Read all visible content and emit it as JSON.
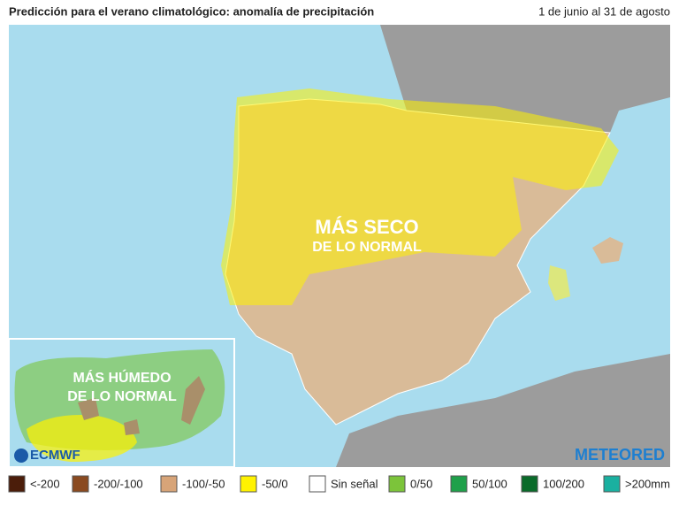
{
  "header": {
    "title": "Predicción para el verano climatológico: anomalía de precipitación",
    "date_range": "1 de junio al 31 de agosto"
  },
  "map": {
    "labels": [
      {
        "lines": [
          "MÁS SECO",
          "DE LO NORMAL"
        ]
      },
      {
        "lines": [
          "MÁS HÚMEDO",
          "DE LO NORMAL"
        ]
      }
    ],
    "logos": [
      "ECMWF",
      "METEORED"
    ]
  },
  "legend": [
    {
      "label": "<-200",
      "color": "#4b1d0a"
    },
    {
      "label": "-200/-100",
      "color": "#8a4a20"
    },
    {
      "label": "-100/-50",
      "color": "#d7a478"
    },
    {
      "label": "-50/0",
      "color": "#fff200"
    },
    {
      "label": "Sin señal",
      "color": "#ffffff"
    },
    {
      "label": "0/50",
      "color": "#7cc43a"
    },
    {
      "label": "50/100",
      "color": "#1fa04a"
    },
    {
      "label": "100/200",
      "color": "#0a6b2a"
    },
    {
      "label": ">200mm",
      "color": "#1ab0a0"
    }
  ]
}
